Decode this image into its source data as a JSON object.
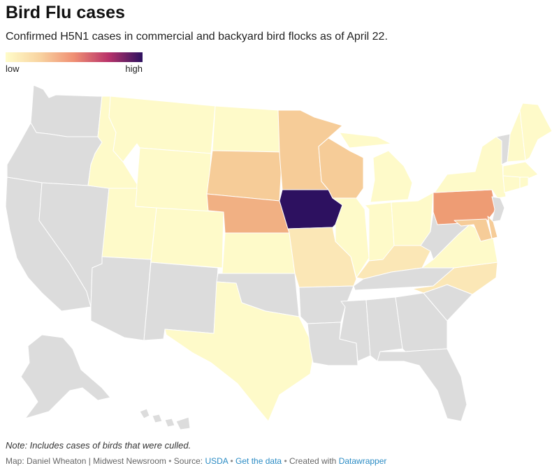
{
  "header": {
    "title": "Bird Flu cases",
    "subtitle": "Confirmed H5N1 cases in commercial and backyard bird flocks as of April 22."
  },
  "legend": {
    "low": "low",
    "high": "high"
  },
  "colors": {
    "no_data": "#dcdcdc",
    "level_1": "#fefac9",
    "level_2": "#fbe7b6",
    "level_3": "#f6cc98",
    "level_4": "#f1b083",
    "level_5": "#ee9c74",
    "max": "#2d1160"
  },
  "states": [
    {
      "name": "Washington",
      "level": "no_data"
    },
    {
      "name": "Oregon",
      "level": "no_data"
    },
    {
      "name": "California",
      "level": "no_data"
    },
    {
      "name": "Nevada",
      "level": "no_data"
    },
    {
      "name": "Idaho",
      "level": "level_1"
    },
    {
      "name": "Montana",
      "level": "level_1"
    },
    {
      "name": "Wyoming",
      "level": "level_1"
    },
    {
      "name": "Utah",
      "level": "level_1"
    },
    {
      "name": "Arizona",
      "level": "no_data"
    },
    {
      "name": "Colorado",
      "level": "level_1"
    },
    {
      "name": "New Mexico",
      "level": "no_data"
    },
    {
      "name": "North Dakota",
      "level": "level_1"
    },
    {
      "name": "South Dakota",
      "level": "level_3"
    },
    {
      "name": "Nebraska",
      "level": "level_4"
    },
    {
      "name": "Kansas",
      "level": "level_1"
    },
    {
      "name": "Oklahoma",
      "level": "no_data"
    },
    {
      "name": "Texas",
      "level": "level_1"
    },
    {
      "name": "Minnesota",
      "level": "level_3"
    },
    {
      "name": "Iowa",
      "level": "max"
    },
    {
      "name": "Missouri",
      "level": "level_2"
    },
    {
      "name": "Arkansas",
      "level": "no_data"
    },
    {
      "name": "Louisiana",
      "level": "no_data"
    },
    {
      "name": "Wisconsin",
      "level": "level_3"
    },
    {
      "name": "Illinois",
      "level": "level_1"
    },
    {
      "name": "Michigan",
      "level": "level_1"
    },
    {
      "name": "Indiana",
      "level": "level_1"
    },
    {
      "name": "Ohio",
      "level": "level_1"
    },
    {
      "name": "Kentucky",
      "level": "level_2"
    },
    {
      "name": "Tennessee",
      "level": "no_data"
    },
    {
      "name": "Mississippi",
      "level": "no_data"
    },
    {
      "name": "Alabama",
      "level": "no_data"
    },
    {
      "name": "Georgia",
      "level": "no_data"
    },
    {
      "name": "Florida",
      "level": "no_data"
    },
    {
      "name": "South Carolina",
      "level": "no_data"
    },
    {
      "name": "North Carolina",
      "level": "level_2"
    },
    {
      "name": "Virginia",
      "level": "level_1"
    },
    {
      "name": "West Virginia",
      "level": "no_data"
    },
    {
      "name": "Pennsylvania",
      "level": "level_5"
    },
    {
      "name": "New York",
      "level": "level_1"
    },
    {
      "name": "Vermont",
      "level": "no_data"
    },
    {
      "name": "New Hampshire",
      "level": "level_1"
    },
    {
      "name": "Maine",
      "level": "level_1"
    },
    {
      "name": "Massachusetts",
      "level": "level_1"
    },
    {
      "name": "Connecticut",
      "level": "level_1"
    },
    {
      "name": "Rhode Island",
      "level": "level_1"
    },
    {
      "name": "New Jersey",
      "level": "no_data"
    },
    {
      "name": "Delaware",
      "level": "level_3"
    },
    {
      "name": "Maryland",
      "level": "level_3"
    },
    {
      "name": "Alaska",
      "level": "no_data"
    },
    {
      "name": "Hawaii",
      "level": "no_data"
    }
  ],
  "note": "Note: Includes cases of birds that were culled.",
  "footer": {
    "credit": "Map: Daniel Wheaton | Midwest Newsroom",
    "source_label": "Source:",
    "source_link": "USDA",
    "data_link": "Get the data",
    "created_label": "Created with",
    "created_link": "Datawrapper"
  }
}
